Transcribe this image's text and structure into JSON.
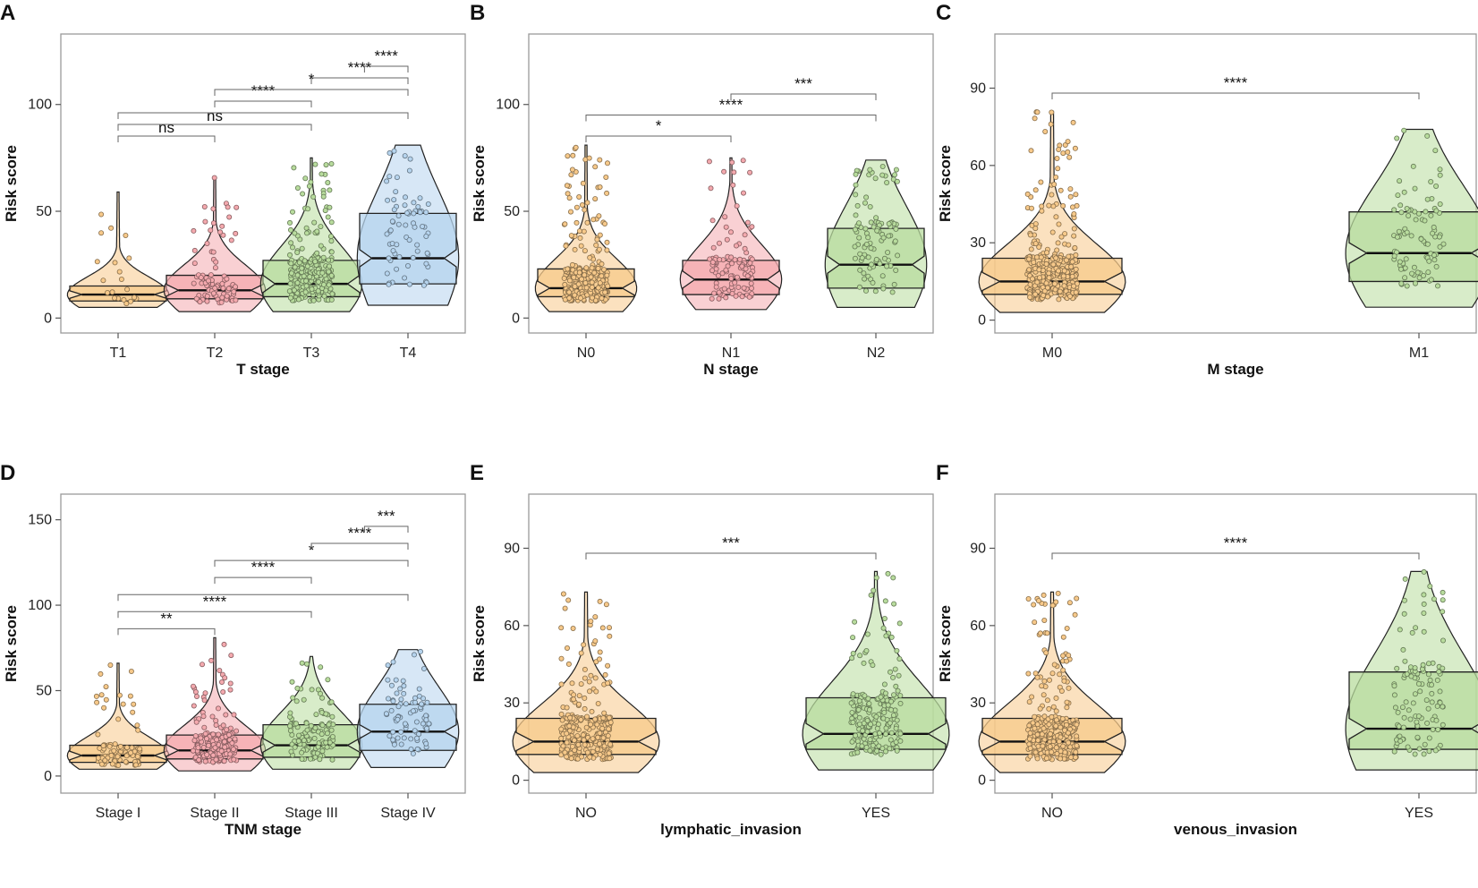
{
  "chart_data": [
    {
      "type": "box",
      "panel": "A",
      "xlabel": "T stage",
      "ylabel": "Risk score",
      "ylim": [
        -7,
        133
      ],
      "yticks": [
        0,
        50,
        100
      ],
      "groups": [
        {
          "name": "T1",
          "color": "#F7C98A",
          "median": 11,
          "q1": 8,
          "q3": 15,
          "min": 5,
          "max": 59,
          "dots": 20
        },
        {
          "name": "T2",
          "color": "#F4A9AE",
          "median": 13,
          "q1": 9,
          "q3": 20,
          "min": 3,
          "max": 66,
          "dots": 90
        },
        {
          "name": "T3",
          "color": "#B8DC9D",
          "median": 16,
          "q1": 10,
          "q3": 27,
          "min": 3,
          "max": 75,
          "dots": 240
        },
        {
          "name": "T4",
          "color": "#B6D4EE",
          "median": 28,
          "q1": 16,
          "q3": 49,
          "min": 6,
          "max": 81,
          "dots": 70
        }
      ],
      "comparisons": [
        {
          "g1": "T1",
          "g2": "T2",
          "label": "ns"
        },
        {
          "g1": "T1",
          "g2": "T3",
          "label": "ns"
        },
        {
          "g1": "T1",
          "g2": "T4",
          "label": ""
        },
        {
          "g1": "T2",
          "g2": "T3",
          "label": "****"
        },
        {
          "g1": "T2",
          "g2": "T4",
          "label": "*"
        },
        {
          "g1": "T3",
          "g2": "T4",
          "label": "****"
        },
        {
          "g1": "T3.5",
          "g2": "T4",
          "label": "****"
        }
      ]
    },
    {
      "type": "box",
      "panel": "B",
      "xlabel": "N stage",
      "ylabel": "Risk score",
      "ylim": [
        -7,
        133
      ],
      "yticks": [
        0,
        50,
        100
      ],
      "groups": [
        {
          "name": "N0",
          "color": "#F7C98A",
          "median": 14,
          "q1": 10,
          "q3": 23,
          "min": 3,
          "max": 81,
          "dots": 280
        },
        {
          "name": "N1",
          "color": "#F4A9AE",
          "median": 18,
          "q1": 11,
          "q3": 27,
          "min": 4,
          "max": 75,
          "dots": 110
        },
        {
          "name": "N2",
          "color": "#B8DC9D",
          "median": 25,
          "q1": 14,
          "q3": 42,
          "min": 5,
          "max": 74,
          "dots": 100
        }
      ],
      "comparisons": [
        {
          "g1": "N0",
          "g2": "N1",
          "label": "*"
        },
        {
          "g1": "N0",
          "g2": "N2",
          "label": "****"
        },
        {
          "g1": "N1",
          "g2": "N2",
          "label": "***"
        }
      ]
    },
    {
      "type": "box",
      "panel": "C",
      "xlabel": "M stage",
      "ylabel": "Risk score",
      "ylim": [
        -5,
        111
      ],
      "yticks": [
        0,
        30,
        60,
        90
      ],
      "groups": [
        {
          "name": "M0",
          "color": "#F7C98A",
          "median": 15,
          "q1": 10,
          "q3": 24,
          "min": 3,
          "max": 81,
          "dots": 340
        },
        {
          "name": "M1",
          "color": "#B8DC9D",
          "median": 26,
          "q1": 15,
          "q3": 42,
          "min": 5,
          "max": 74,
          "dots": 90
        }
      ],
      "comparisons": [
        {
          "g1": "M0",
          "g2": "M1",
          "label": "****"
        }
      ]
    },
    {
      "type": "box",
      "panel": "D",
      "xlabel": "TNM stage",
      "ylabel": "Risk score",
      "ylim": [
        -10,
        165
      ],
      "yticks": [
        0,
        50,
        100,
        150
      ],
      "groups": [
        {
          "name": "Stage I",
          "color": "#F7C98A",
          "median": 12,
          "q1": 8,
          "q3": 18,
          "min": 4,
          "max": 66,
          "dots": 90
        },
        {
          "name": "Stage II",
          "color": "#F4A9AE",
          "median": 15,
          "q1": 10,
          "q3": 24,
          "min": 3,
          "max": 81,
          "dots": 180
        },
        {
          "name": "Stage III",
          "color": "#B8DC9D",
          "median": 18,
          "q1": 11,
          "q3": 30,
          "min": 4,
          "max": 70,
          "dots": 120
        },
        {
          "name": "Stage IV",
          "color": "#B6D4EE",
          "median": 26,
          "q1": 15,
          "q3": 42,
          "min": 5,
          "max": 74,
          "dots": 80
        }
      ],
      "comparisons": [
        {
          "g1": "Stage I",
          "g2": "Stage II",
          "label": "**"
        },
        {
          "g1": "Stage I",
          "g2": "Stage III",
          "label": "****"
        },
        {
          "g1": "Stage I",
          "g2": "Stage IV",
          "label": ""
        },
        {
          "g1": "Stage II",
          "g2": "Stage III",
          "label": "****"
        },
        {
          "g1": "Stage II",
          "g2": "Stage IV",
          "label": "*"
        },
        {
          "g1": "Stage III",
          "g2": "Stage IV",
          "label": "****"
        },
        {
          "g1": "Stage III.5",
          "g2": "Stage IV",
          "label": "***"
        }
      ]
    },
    {
      "type": "box",
      "panel": "E",
      "xlabel": "lymphatic_invasion",
      "ylabel": "Risk score",
      "ylim": [
        -5,
        111
      ],
      "yticks": [
        0,
        30,
        60,
        90
      ],
      "groups": [
        {
          "name": "NO",
          "color": "#F7C98A",
          "median": 15,
          "q1": 10,
          "q3": 24,
          "min": 3,
          "max": 73,
          "dots": 260
        },
        {
          "name": "YES",
          "color": "#B8DC9D",
          "median": 18,
          "q1": 12,
          "q3": 32,
          "min": 4,
          "max": 81,
          "dots": 200
        }
      ],
      "comparisons": [
        {
          "g1": "NO",
          "g2": "YES",
          "label": "***"
        }
      ]
    },
    {
      "type": "box",
      "panel": "F",
      "xlabel": "venous_invasion",
      "ylabel": "Risk score",
      "ylim": [
        -5,
        111
      ],
      "yticks": [
        0,
        30,
        60,
        90
      ],
      "groups": [
        {
          "name": "NO",
          "color": "#F7C98A",
          "median": 15,
          "q1": 10,
          "q3": 24,
          "min": 3,
          "max": 73,
          "dots": 300
        },
        {
          "name": "YES",
          "color": "#B8DC9D",
          "median": 20,
          "q1": 12,
          "q3": 42,
          "min": 4,
          "max": 81,
          "dots": 110
        }
      ],
      "comparisons": [
        {
          "g1": "NO",
          "g2": "YES",
          "label": "****"
        }
      ]
    }
  ]
}
